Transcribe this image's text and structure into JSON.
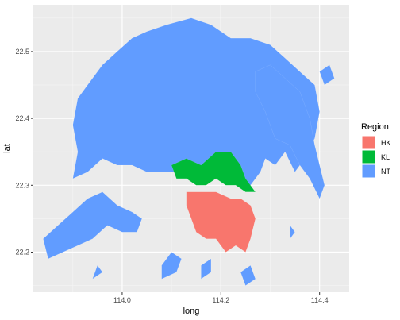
{
  "chart_data": {
    "type": "map",
    "xlabel": "long",
    "ylabel": "lat",
    "xlim": [
      113.82,
      114.46
    ],
    "ylim": [
      22.14,
      22.57
    ],
    "x_ticks": [
      114.0,
      114.2,
      114.4
    ],
    "x_tick_labels": [
      "114.0",
      "114.2",
      "114.4"
    ],
    "y_ticks": [
      22.2,
      22.3,
      22.4,
      22.5
    ],
    "y_tick_labels": [
      "22.2",
      "22.3",
      "22.4",
      "22.5"
    ],
    "grid": true,
    "legend": {
      "title": "Region",
      "placement": "right",
      "entries": [
        {
          "label": "HK",
          "color": "#F8766D"
        },
        {
          "label": "KL",
          "color": "#00BA38"
        },
        {
          "label": "NT",
          "color": "#619CFF"
        }
      ]
    },
    "regions": [
      {
        "name": "NT",
        "color": "#619CFF",
        "shapes": [
          [
            [
              113.9,
              22.31
            ],
            [
              113.93,
              22.32
            ],
            [
              113.96,
              22.34
            ],
            [
              113.99,
              22.33
            ],
            [
              114.02,
              22.33
            ],
            [
              114.05,
              22.32
            ],
            [
              114.08,
              22.32
            ],
            [
              114.11,
              22.32
            ],
            [
              114.13,
              22.33
            ],
            [
              114.16,
              22.32
            ],
            [
              114.19,
              22.33
            ],
            [
              114.21,
              22.32
            ],
            [
              114.24,
              22.31
            ],
            [
              114.26,
              22.3
            ],
            [
              114.28,
              22.32
            ],
            [
              114.29,
              22.34
            ],
            [
              114.31,
              22.33
            ],
            [
              114.33,
              22.35
            ],
            [
              114.35,
              22.32
            ],
            [
              114.37,
              22.34
            ],
            [
              114.39,
              22.37
            ],
            [
              114.4,
              22.41
            ],
            [
              114.39,
              22.45
            ],
            [
              114.36,
              22.47
            ],
            [
              114.33,
              22.49
            ],
            [
              114.3,
              22.51
            ],
            [
              114.26,
              22.52
            ],
            [
              114.22,
              22.52
            ],
            [
              114.18,
              22.54
            ],
            [
              114.14,
              22.55
            ],
            [
              114.09,
              22.54
            ],
            [
              114.05,
              22.53
            ],
            [
              114.02,
              22.52
            ],
            [
              113.99,
              22.5
            ],
            [
              113.96,
              22.48
            ],
            [
              113.93,
              22.45
            ],
            [
              113.91,
              22.43
            ],
            [
              113.9,
              22.39
            ],
            [
              113.91,
              22.35
            ]
          ],
          [
            [
              113.84,
              22.22
            ],
            [
              113.87,
              22.24
            ],
            [
              113.9,
              22.26
            ],
            [
              113.93,
              22.28
            ],
            [
              113.96,
              22.29
            ],
            [
              113.99,
              22.27
            ],
            [
              114.02,
              22.26
            ],
            [
              114.04,
              22.25
            ],
            [
              114.03,
              22.23
            ],
            [
              114.0,
              22.23
            ],
            [
              113.97,
              22.24
            ],
            [
              113.94,
              22.22
            ],
            [
              113.91,
              22.21
            ],
            [
              113.88,
              22.2
            ],
            [
              113.85,
              22.19
            ]
          ],
          [
            [
              114.27,
              22.47
            ],
            [
              114.3,
              22.48
            ],
            [
              114.33,
              22.46
            ],
            [
              114.36,
              22.44
            ],
            [
              114.38,
              22.4
            ],
            [
              114.39,
              22.36
            ],
            [
              114.4,
              22.33
            ],
            [
              114.41,
              22.3
            ],
            [
              114.4,
              22.28
            ],
            [
              114.38,
              22.31
            ],
            [
              114.36,
              22.33
            ],
            [
              114.34,
              22.36
            ],
            [
              114.31,
              22.37
            ],
            [
              114.29,
              22.41
            ],
            [
              114.27,
              22.44
            ]
          ],
          [
            [
              114.08,
              22.16
            ],
            [
              114.11,
              22.17
            ],
            [
              114.12,
              22.19
            ],
            [
              114.1,
              22.2
            ],
            [
              114.08,
              22.18
            ]
          ],
          [
            [
              114.16,
              22.18
            ],
            [
              114.18,
              22.19
            ],
            [
              114.18,
              22.17
            ],
            [
              114.16,
              22.16
            ]
          ],
          [
            [
              114.25,
              22.15
            ],
            [
              114.27,
              22.16
            ],
            [
              114.26,
              22.18
            ],
            [
              114.24,
              22.17
            ]
          ],
          [
            [
              113.94,
              22.16
            ],
            [
              113.96,
              22.17
            ],
            [
              113.95,
              22.18
            ]
          ],
          [
            [
              114.34,
              22.22
            ],
            [
              114.35,
              22.23
            ],
            [
              114.34,
              22.24
            ]
          ],
          [
            [
              114.41,
              22.45
            ],
            [
              114.43,
              22.46
            ],
            [
              114.42,
              22.48
            ],
            [
              114.4,
              22.47
            ]
          ]
        ]
      },
      {
        "name": "KL",
        "color": "#00BA38",
        "shapes": [
          [
            [
              114.1,
              22.33
            ],
            [
              114.13,
              22.34
            ],
            [
              114.16,
              22.33
            ],
            [
              114.19,
              22.35
            ],
            [
              114.22,
              22.35
            ],
            [
              114.24,
              22.33
            ],
            [
              114.25,
              22.31
            ],
            [
              114.27,
              22.29
            ],
            [
              114.25,
              22.29
            ],
            [
              114.23,
              22.3
            ],
            [
              114.21,
              22.3
            ],
            [
              114.19,
              22.31
            ],
            [
              114.17,
              22.3
            ],
            [
              114.15,
              22.3
            ],
            [
              114.13,
              22.31
            ],
            [
              114.11,
              22.31
            ]
          ]
        ]
      },
      {
        "name": "HK",
        "color": "#F8766D",
        "shapes": [
          [
            [
              114.13,
              22.29
            ],
            [
              114.16,
              22.29
            ],
            [
              114.19,
              22.29
            ],
            [
              114.22,
              22.28
            ],
            [
              114.24,
              22.28
            ],
            [
              114.26,
              22.27
            ],
            [
              114.27,
              22.25
            ],
            [
              114.26,
              22.22
            ],
            [
              114.25,
              22.2
            ],
            [
              114.23,
              22.21
            ],
            [
              114.21,
              22.2
            ],
            [
              114.19,
              22.22
            ],
            [
              114.17,
              22.22
            ],
            [
              114.15,
              22.23
            ],
            [
              114.14,
              22.25
            ],
            [
              114.13,
              22.27
            ]
          ]
        ]
      }
    ]
  }
}
